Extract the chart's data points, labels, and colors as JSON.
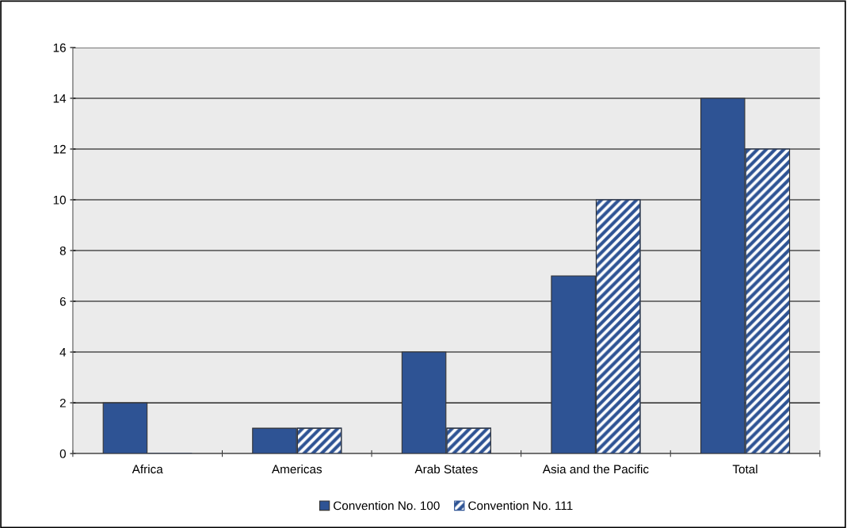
{
  "chart_data": {
    "type": "bar",
    "categories": [
      "Africa",
      "Americas",
      "Arab States",
      "Asia and the Pacific",
      "Total"
    ],
    "series": [
      {
        "name": "Convention No. 100",
        "color": "#2e5394",
        "values": [
          2,
          1,
          4,
          7,
          14
        ]
      },
      {
        "name": "Convention No. 111",
        "color": "#2e5394",
        "values": [
          0,
          1,
          1,
          10,
          12
        ]
      }
    ],
    "ylim": [
      0,
      16
    ],
    "yticks": [
      0,
      2,
      4,
      6,
      8,
      10,
      12,
      14,
      16
    ],
    "grid": "y",
    "legend": "bottom"
  }
}
